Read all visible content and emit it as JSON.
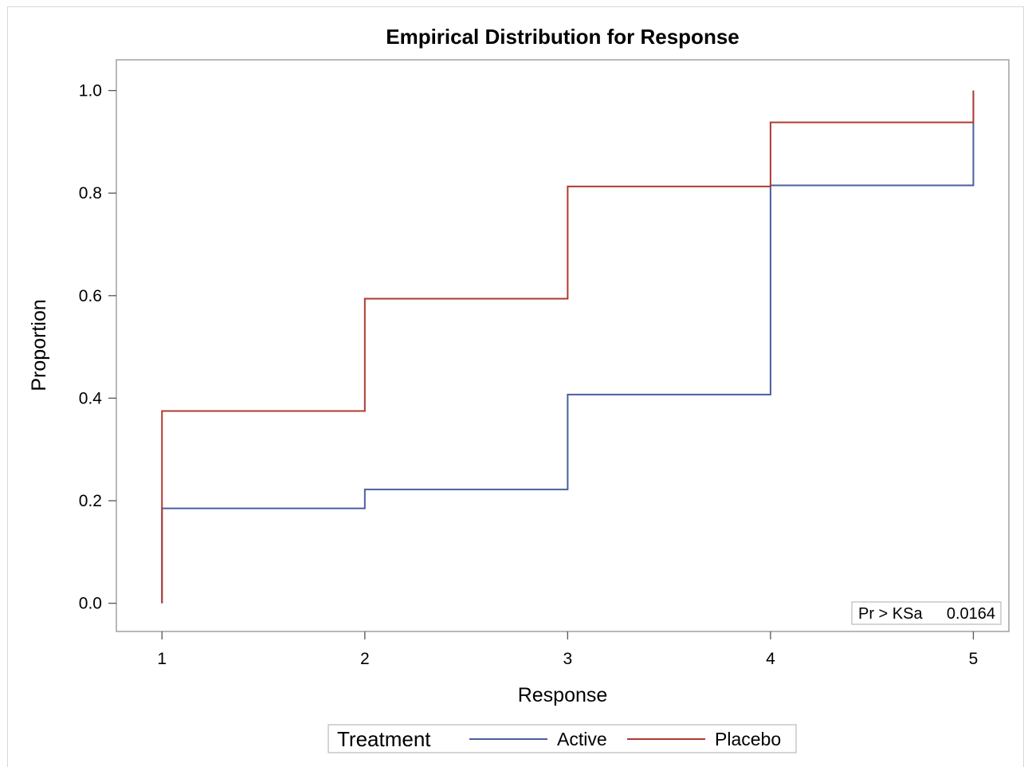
{
  "chart_data": {
    "type": "line",
    "step": true,
    "title": "Empirical Distribution for Response",
    "xlabel": "Response",
    "ylabel": "Proportion",
    "xlim": [
      0.775,
      5.175
    ],
    "ylim": [
      -0.055,
      1.06
    ],
    "xticks": [
      1,
      2,
      3,
      4,
      5
    ],
    "yticks": [
      0.0,
      0.2,
      0.4,
      0.6,
      0.8,
      1.0
    ],
    "xtick_labels": [
      "1",
      "2",
      "3",
      "4",
      "5"
    ],
    "ytick_labels": [
      "0.0",
      "0.2",
      "0.4",
      "0.6",
      "0.8",
      "1.0"
    ],
    "grid": false,
    "series": [
      {
        "name": "Active",
        "color": "#4a5f9e",
        "x": [
          1,
          2,
          3,
          4,
          5
        ],
        "y": [
          0.185,
          0.222,
          0.407,
          0.815,
          1.0
        ]
      },
      {
        "name": "Placebo",
        "color": "#b03a31",
        "x": [
          1,
          2,
          3,
          4,
          5
        ],
        "y": [
          0.375,
          0.594,
          0.813,
          0.938,
          1.0
        ]
      }
    ],
    "legend": {
      "title": "Treatment",
      "placement": "bottom",
      "entries": [
        "Active",
        "Placebo"
      ]
    },
    "inset": {
      "label": "Pr > KSa",
      "value": "0.0164",
      "placement": "bottom-right"
    }
  }
}
